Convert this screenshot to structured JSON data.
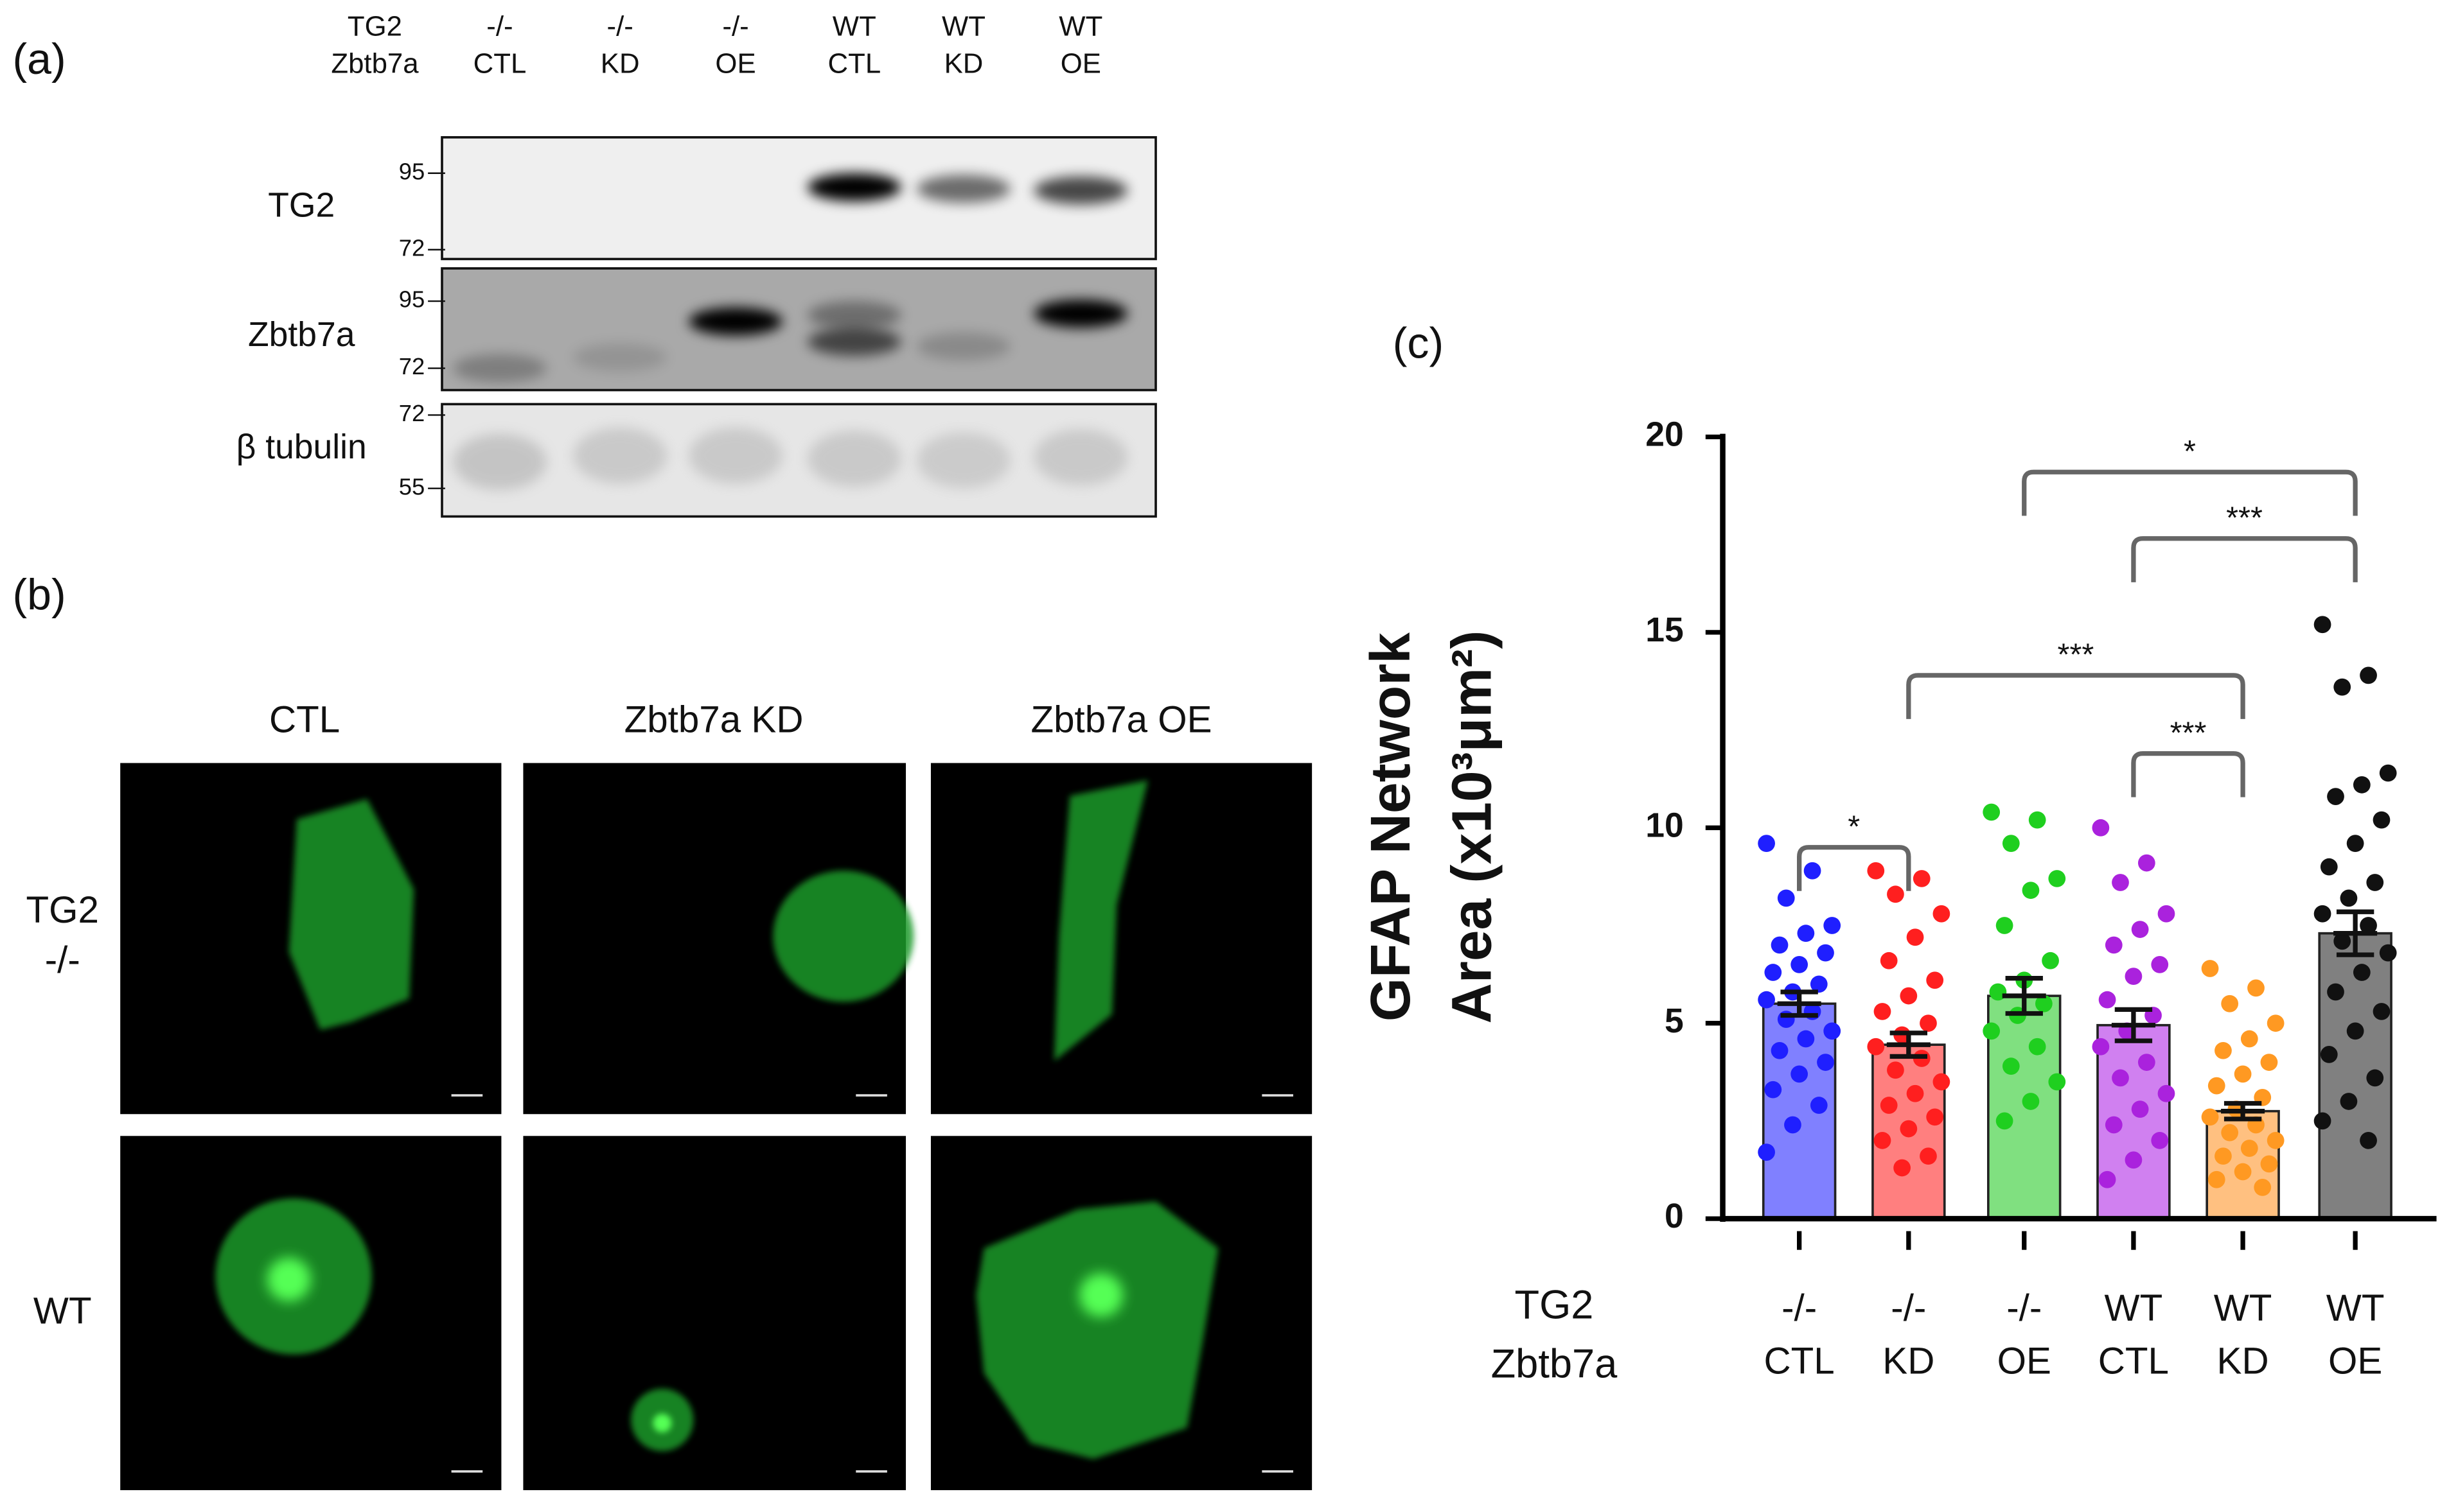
{
  "panel_a": {
    "label": "(a)",
    "header_rows": [
      {
        "label": "TG2",
        "lanes": [
          "-/-",
          "-/-",
          "-/-",
          "WT",
          "WT",
          "WT"
        ]
      },
      {
        "label": "Zbtb7a",
        "lanes": [
          "CTL",
          "KD",
          "OE",
          "CTL",
          "KD",
          "OE"
        ]
      }
    ],
    "blots": [
      {
        "name": "TG2",
        "markers": [
          95,
          72
        ]
      },
      {
        "name": "Zbtb7a",
        "markers": [
          95,
          72
        ]
      },
      {
        "name": "β tubulin",
        "markers": [
          72,
          55
        ]
      }
    ]
  },
  "panel_b": {
    "label": "(b)",
    "columns": [
      "CTL",
      "Zbtb7a KD",
      "Zbtb7a OE"
    ],
    "rows": [
      [
        "TG2",
        "-/-"
      ],
      [
        "WT"
      ]
    ]
  },
  "chart_data": {
    "type": "bar",
    "label": "(c)",
    "ylabel": [
      "GFAP Network",
      "Area (x10³μm²)"
    ],
    "category_axis_labels": [
      "TG2",
      "Zbtb7a"
    ],
    "categories": [
      [
        "-/-",
        "CTL"
      ],
      [
        "-/-",
        "KD"
      ],
      [
        "-/-",
        "OE"
      ],
      [
        "WT",
        "CTL"
      ],
      [
        "WT",
        "KD"
      ],
      [
        "WT",
        "OE"
      ]
    ],
    "values": [
      5.5,
      4.45,
      5.7,
      4.95,
      2.75,
      7.3
    ],
    "errors": [
      0.3,
      0.3,
      0.45,
      0.4,
      0.2,
      0.55
    ],
    "colors": [
      "#1f1fff",
      "#ff1f1f",
      "#1fcf1f",
      "#aa22dd",
      "#ff9922",
      "#111111"
    ],
    "bar_colors": [
      "#8080ff",
      "#ff7f7f",
      "#80e080",
      "#d080f0",
      "#ffc080",
      "#808080"
    ],
    "points": [
      [
        9.6,
        8.9,
        8.2,
        7.5,
        7.3,
        7.0,
        6.8,
        6.5,
        6.3,
        6.0,
        5.8,
        5.6,
        5.3,
        5.1,
        4.8,
        4.6,
        4.3,
        4.0,
        3.7,
        3.3,
        2.9,
        2.4,
        1.7
      ],
      [
        8.9,
        8.7,
        8.3,
        7.8,
        7.2,
        6.6,
        6.1,
        5.7,
        5.3,
        5.0,
        4.7,
        4.4,
        4.1,
        3.8,
        3.5,
        3.2,
        2.9,
        2.6,
        2.3,
        2.0,
        1.6,
        1.3
      ],
      [
        10.4,
        10.2,
        9.6,
        8.7,
        8.4,
        7.5,
        6.6,
        6.1,
        5.8,
        5.5,
        5.2,
        4.8,
        4.4,
        3.9,
        3.5,
        3.0,
        2.5
      ],
      [
        10.0,
        9.1,
        8.6,
        7.8,
        7.4,
        7.0,
        6.5,
        6.2,
        5.6,
        5.2,
        4.8,
        4.4,
        4.0,
        3.6,
        3.2,
        2.8,
        2.4,
        2.0,
        1.5,
        1.0
      ],
      [
        6.4,
        5.9,
        5.5,
        5.0,
        4.6,
        4.3,
        4.0,
        3.7,
        3.4,
        3.1,
        2.8,
        2.6,
        2.4,
        2.2,
        2.0,
        1.8,
        1.6,
        1.4,
        1.2,
        1.0,
        0.8
      ],
      [
        15.2,
        13.9,
        13.6,
        11.4,
        11.1,
        10.8,
        10.2,
        9.6,
        9.0,
        8.6,
        8.2,
        7.8,
        7.5,
        7.1,
        6.8,
        6.3,
        5.8,
        5.3,
        4.8,
        4.2,
        3.6,
        3.0,
        2.5,
        2.0
      ]
    ],
    "significance": [
      {
        "groups": [
          0,
          1
        ],
        "label": "*"
      },
      {
        "groups": [
          1,
          4
        ],
        "label": "***"
      },
      {
        "groups": [
          3,
          4
        ],
        "label": "***"
      },
      {
        "groups": [
          2,
          5
        ],
        "label": "*"
      },
      {
        "groups": [
          3,
          5
        ],
        "label": "***"
      }
    ],
    "ylim": [
      0,
      20
    ],
    "yticks": [
      0,
      5,
      10,
      15,
      20
    ]
  }
}
